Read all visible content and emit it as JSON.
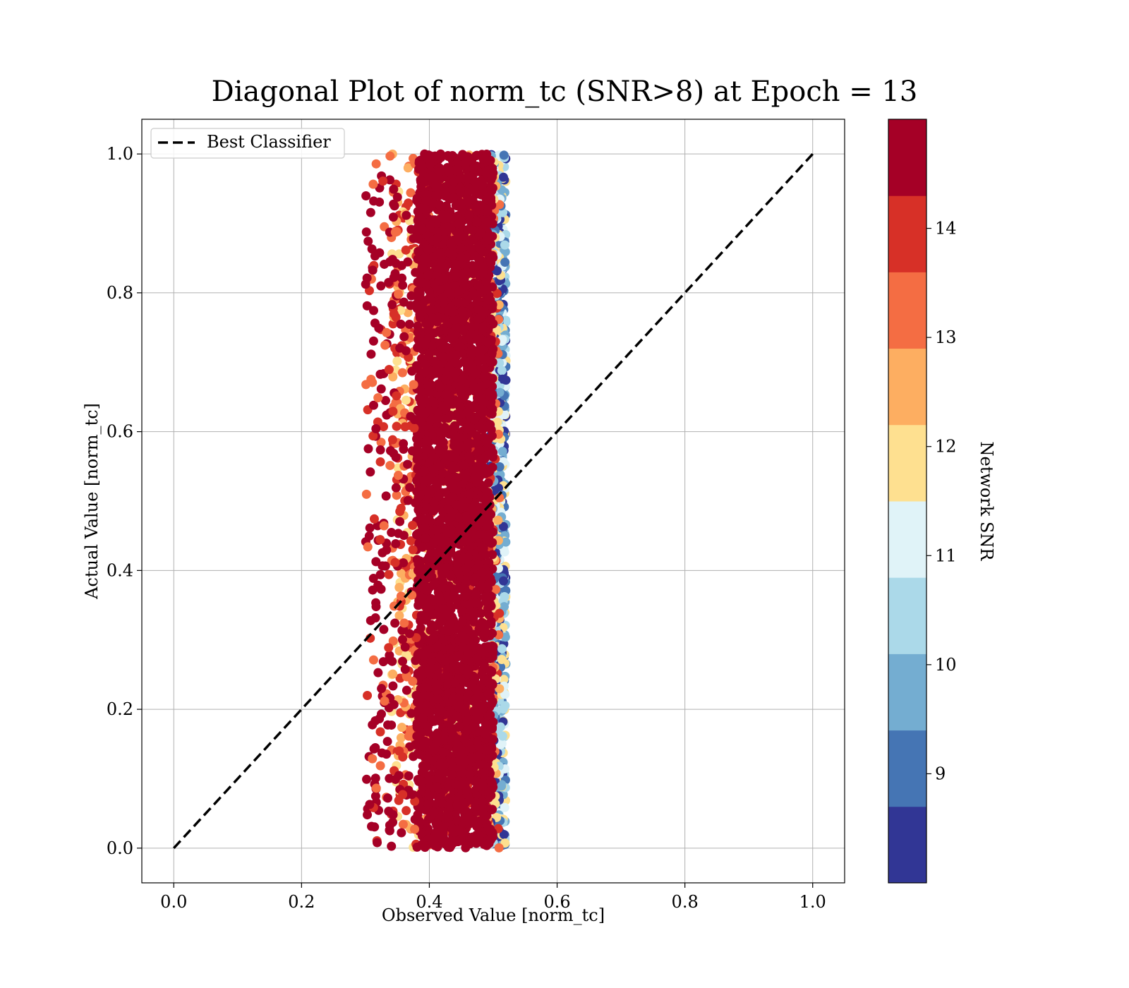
{
  "chart_data": {
    "type": "scatter",
    "title": "Diagonal Plot of norm_tc (SNR>8) at Epoch = 13",
    "xlabel": "Observed Value [norm_tc]",
    "ylabel": "Actual Value [norm_tc]",
    "xlim": [
      -0.05,
      1.05
    ],
    "ylim": [
      -0.05,
      1.05
    ],
    "xticks": [
      "0.0",
      "0.2",
      "0.4",
      "0.6",
      "0.8",
      "1.0"
    ],
    "yticks": [
      "0.0",
      "0.2",
      "0.4",
      "0.6",
      "0.8",
      "1.0"
    ],
    "grid": true,
    "legend": {
      "placement": "upper-left",
      "entries": [
        "Best Classifier"
      ]
    },
    "diagonal_line": {
      "x": [
        0.0,
        1.0
      ],
      "y": [
        0.0,
        1.0
      ],
      "style": "dashed",
      "color": "#000000"
    },
    "scatter_cloud": {
      "observed_core_range": [
        0.38,
        0.5
      ],
      "observed_full_range": [
        0.27,
        0.52
      ],
      "actual_range": [
        0.0,
        1.0
      ],
      "dominant_color": "#a50026"
    },
    "colorbar": {
      "label": "Network SNR",
      "range": [
        8.0,
        15.0
      ],
      "ticks": [
        "9",
        "10",
        "11",
        "12",
        "13",
        "14"
      ],
      "tick_values": [
        9,
        10,
        11,
        12,
        13,
        14
      ],
      "colors": [
        "#313695",
        "#4575b4",
        "#74add1",
        "#abd9e9",
        "#e0f3f8",
        "#fee090",
        "#fdae61",
        "#f46d43",
        "#d73027",
        "#a50026"
      ]
    }
  }
}
